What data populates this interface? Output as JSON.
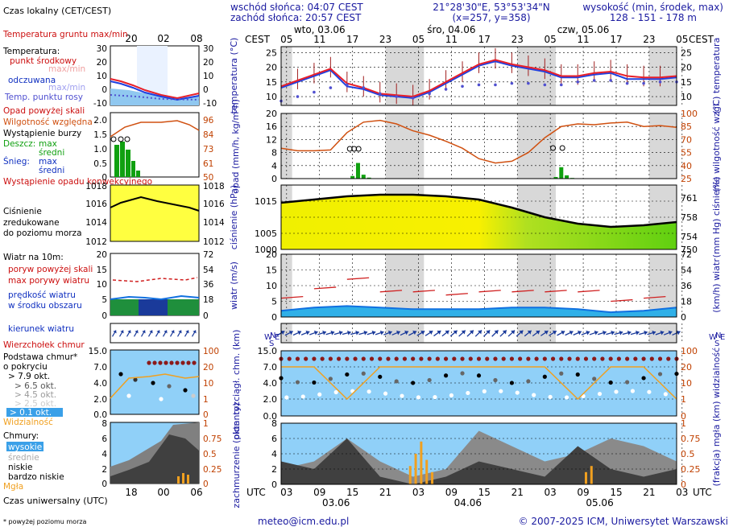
{
  "header": {
    "sunrise": "wschód słońca: 04:07 CEST",
    "sunset": "zachód słońca: 20:57 CEST",
    "coords": "21°28'30\"E, 53°53'34\"N",
    "grid": "(x=257, y=358)",
    "elevation_title": "wysokość (min, środek, max)",
    "elevation_values": "128 - 151 - 178 m"
  },
  "time_axis": {
    "top_label": "CEST",
    "top_hours": [
      "05",
      "11",
      "17",
      "23",
      "05",
      "11",
      "17",
      "23",
      "05",
      "11",
      "17",
      "23",
      "05"
    ],
    "top_days": [
      "wto, 03.06",
      "śro, 04.06",
      "czw, 05.06"
    ],
    "bottom_label": "UTC",
    "bottom_hours": [
      "03",
      "09",
      "15",
      "21",
      "03",
      "09",
      "15",
      "21",
      "03",
      "09",
      "15",
      "21",
      "03"
    ],
    "bottom_days": [
      "03.06",
      "04.06",
      "05.06"
    ]
  },
  "panel_labels": {
    "temp_left": "temperatura (°C)",
    "temp_right": "(°C) temperatura",
    "precip_left": "opad (mm/h, kg/m²h)",
    "precip_right": "(%) wilgotność wzgl.",
    "pressure_left": "ciśnienie (hPa)",
    "pressure_right": "(mm Hg) ciśnienie",
    "wind_left": "wiatr (m/s)",
    "wind_right": "(km/h) wiatr",
    "cloudbase_left": "pion. rozciągł. chm. (km)",
    "cloudbase_right": "(km) widzialność",
    "clouds_left": "zachmurzenie (oktanty)",
    "clouds_right": "(frakcja) mgła"
  },
  "axes": {
    "temp_left": [
      "25",
      "20",
      "15",
      "10"
    ],
    "temp_right": [
      "25",
      "20",
      "15",
      "10"
    ],
    "precip_left": [
      "20",
      "16",
      "12",
      "8",
      "4",
      "0"
    ],
    "precip_right": [
      "100",
      "85",
      "70",
      "55",
      "40",
      "25"
    ],
    "pressure_left": [
      "1015",
      "1005",
      "1000"
    ],
    "pressure_right": [
      "761",
      "758",
      "754",
      "750"
    ],
    "wind_left": [
      "20",
      "15",
      "10",
      "5",
      "0"
    ],
    "wind_right": [
      "72",
      "54",
      "36",
      "18",
      "0"
    ],
    "cloudbase_left": [
      "15.0",
      "7.0",
      "4.0",
      "2.0",
      "0.0"
    ],
    "cloudbase_right": [
      "100",
      "20",
      "10",
      "1",
      "0"
    ],
    "clouds_left": [
      "8",
      "6",
      "4",
      "2",
      "0"
    ],
    "clouds_right": [
      "1",
      "0.75",
      "0.5",
      "0.25",
      "0"
    ]
  },
  "legend": {
    "title": "Czas lokalny (CET/CEST)",
    "top_ticks": [
      "20",
      "02",
      "08"
    ],
    "bottom_ticks": [
      "18",
      "00",
      "06"
    ],
    "utc_caption": "Czas uniwersalny (UTC)",
    "footnote": "* powyżej poziomu morza",
    "temp": {
      "ground_range": "Temperatura gruntu max/min",
      "temperature": "Temperatura:",
      "midpoint": "punkt środkowy",
      "max_min": "max/min",
      "felt": "odczuwana",
      "felt_max_min": "max/min",
      "dew": "Temp. punktu rosy",
      "ticks_left": [
        "30",
        "20",
        "10",
        "0",
        "-10"
      ],
      "ticks_right": [
        "30",
        "20",
        "10",
        "0",
        "-10"
      ]
    },
    "precip": {
      "above_scale": "Opad powyżej skali",
      "humidity": "Wilgotność względna",
      "storm": "Wystąpienie burzy",
      "rain": "Deszcz:",
      "rain_max": "max",
      "rain_mean": "średni",
      "snow": "Śnieg:",
      "snow_max": "max",
      "snow_mean": "średni",
      "occurrence": "Wystąpienie opadu konwekcyjnego",
      "ticks_left": [
        "2.0",
        "1.5",
        "1.0",
        "0.5",
        "0"
      ],
      "ticks_right": [
        "96",
        "84",
        "73",
        "61",
        "50"
      ]
    },
    "pressure": {
      "text1": "Ciśnienie",
      "text2": "zredukowane",
      "text3": "do poziomu morza",
      "ticks_left": [
        "1018",
        "1016",
        "1014",
        "1012"
      ],
      "ticks_right": [
        "1018",
        "1016",
        "1014",
        "1012"
      ]
    },
    "wind": {
      "title": "Wiatr na 10m:",
      "gust_above": "poryw powyżej skali",
      "gust_max": "max porywy wiatru",
      "speed": "prędkość wiatru",
      "speed2": "w środku obszaru",
      "ticks_left": [
        "20",
        "15",
        "10",
        "5",
        "0"
      ],
      "ticks_right": [
        "72",
        "54",
        "36",
        "18",
        "0"
      ]
    },
    "direction": {
      "title": "kierunek wiatru"
    },
    "cloudbase": {
      "top": "Wierzchołek chmur",
      "base": "Podstawa chmur*",
      "base2": "o pokryciu",
      "c79": "> 7.9 okt.",
      "c65": "> 6.5 okt.",
      "c45": "> 4.5 okt.",
      "c25": "> 2.5 okt.",
      "c01": "> 0.1 okt.",
      "visibility": "Widzialność",
      "ticks_left": [
        "15.0",
        "7.0",
        "4.0",
        "2.0",
        "0.0"
      ],
      "ticks_right": [
        "100",
        "20",
        "10",
        "1",
        "0"
      ]
    },
    "clouds": {
      "title": "Chmury:",
      "high": "wysokie",
      "mid": "średnie",
      "low": "niskie",
      "very_low": "bardzo niskie",
      "fog": "Mgła",
      "ticks_left": [
        "8",
        "6",
        "4",
        "2",
        "0"
      ],
      "ticks_right": [
        "1",
        "0.75",
        "0.5",
        "0.25",
        "0"
      ]
    }
  },
  "footer": {
    "email": "meteo@icm.edu.pl",
    "copyright": "© 2007-2025 ICM, Uniwersytet Warszawski"
  },
  "colors": {
    "temperature": "#e8202a",
    "felt": "#2040e0",
    "dew": "#5050d0",
    "humidity": "#d05010",
    "rain": "#10a010",
    "pressure_low": "#60d010",
    "pressure_high": "#f0f000",
    "wind_speed": "#1070e0",
    "wind_gust": "#d02020",
    "visibility": "#f0a020",
    "cloud_sky": "#90d0f8",
    "night_band": "#d8d8d8"
  },
  "chart_data": [
    {
      "type": "line",
      "title": "temperatura",
      "ylabel": "°C",
      "ylim": [
        7,
        27
      ],
      "x": [
        0,
        3,
        6,
        9,
        12,
        15,
        18,
        21,
        24,
        27,
        30,
        33,
        36,
        39,
        42,
        45,
        48,
        51,
        54,
        57,
        60,
        63,
        66,
        69,
        72
      ],
      "series": [
        {
          "name": "punkt środkowy",
          "values": [
            13.5,
            15.5,
            17.5,
            19.5,
            14.5,
            13,
            11,
            10.5,
            10,
            12,
            15,
            18,
            21,
            22.5,
            21,
            20,
            19,
            17,
            17,
            18,
            18.5,
            17,
            16.5,
            16.5,
            17
          ]
        },
        {
          "name": "odczuwana",
          "values": [
            13,
            15,
            17,
            19,
            13.5,
            12.5,
            10.5,
            10,
            9.5,
            11.5,
            14.5,
            17.5,
            20.5,
            22,
            20.5,
            19.5,
            18.5,
            16.5,
            16.5,
            17.5,
            18,
            16,
            16,
            16,
            16.5
          ]
        },
        {
          "name": "Temp. punktu rosy",
          "values": [
            8.5,
            10,
            11.5,
            13,
            14,
            13,
            11,
            10,
            9.5,
            11,
            12.5,
            13.5,
            14,
            14,
            14.5,
            14.5,
            14,
            14,
            15,
            15.5,
            15.5,
            14.5,
            14.5,
            15,
            15
          ]
        }
      ]
    },
    {
      "type": "bar",
      "title": "opad",
      "ylabel": "mm/h",
      "ylim": [
        0,
        20
      ],
      "x": [
        13,
        14,
        15,
        16,
        50,
        51,
        52,
        53
      ],
      "values": [
        0.8,
        4.8,
        1.2,
        0.3,
        0.5,
        3.5,
        1.0,
        0.2
      ],
      "humidity_percent": [
        60,
        57,
        57,
        58,
        78,
        90,
        92,
        88,
        80,
        75,
        68,
        60,
        48,
        43,
        45,
        55,
        72,
        85,
        88,
        87,
        89,
        90,
        85,
        86,
        84
      ]
    },
    {
      "type": "area",
      "title": "ciśnienie",
      "ylabel": "hPa",
      "ylim": [
        1000,
        1020
      ],
      "x": [
        0,
        6,
        12,
        18,
        24,
        30,
        36,
        42,
        48,
        54,
        60,
        66,
        72
      ],
      "values": [
        1014.5,
        1015.5,
        1016.5,
        1017,
        1017,
        1016.5,
        1015.5,
        1013,
        1010,
        1008,
        1007,
        1007.5,
        1008.5
      ]
    },
    {
      "type": "line",
      "title": "wiatr",
      "ylabel": "m/s",
      "ylim": [
        0,
        20
      ],
      "x": [
        0,
        6,
        12,
        18,
        24,
        30,
        36,
        42,
        48,
        54,
        60,
        66,
        72
      ],
      "series": [
        {
          "name": "prędkość wiatru",
          "values": [
            2,
            3,
            3.5,
            3,
            2.5,
            2.5,
            2.5,
            3,
            3,
            2.5,
            1.5,
            2,
            3
          ]
        },
        {
          "name": "max porywy wiatru",
          "values": [
            6,
            9,
            12,
            8,
            8,
            7,
            8,
            8,
            8,
            8,
            5,
            6,
            10
          ]
        }
      ]
    },
    {
      "type": "scatter",
      "title": "podstawa chmur",
      "ylabel": "km",
      "x": [
        0,
        6,
        12,
        18,
        24,
        30,
        36,
        42,
        48,
        54,
        60,
        66,
        72
      ],
      "series": [
        {
          "name": "Wierzchołek chmur",
          "values": [
            10,
            10,
            10,
            10,
            10,
            10,
            10,
            10,
            10,
            10,
            10,
            10,
            10
          ]
        },
        {
          "name": "Widzialność",
          "values": [
            20,
            20,
            2,
            20,
            20,
            20,
            20,
            20,
            20,
            5,
            20,
            20,
            1
          ]
        }
      ]
    },
    {
      "type": "area",
      "title": "zachmurzenie",
      "ylabel": "oktanty",
      "ylim": [
        0,
        8
      ],
      "x": [
        0,
        6,
        12,
        18,
        24,
        30,
        36,
        42,
        48,
        54,
        60,
        66,
        72
      ],
      "series": [
        {
          "name": "wysokie",
          "values": [
            2,
            3,
            6,
            3,
            1,
            2,
            7,
            5,
            3,
            4,
            6,
            5,
            3
          ]
        },
        {
          "name": "niskie",
          "values": [
            3,
            2,
            6,
            1,
            0,
            1,
            3,
            2,
            1,
            5,
            2,
            1,
            2
          ]
        }
      ]
    }
  ]
}
